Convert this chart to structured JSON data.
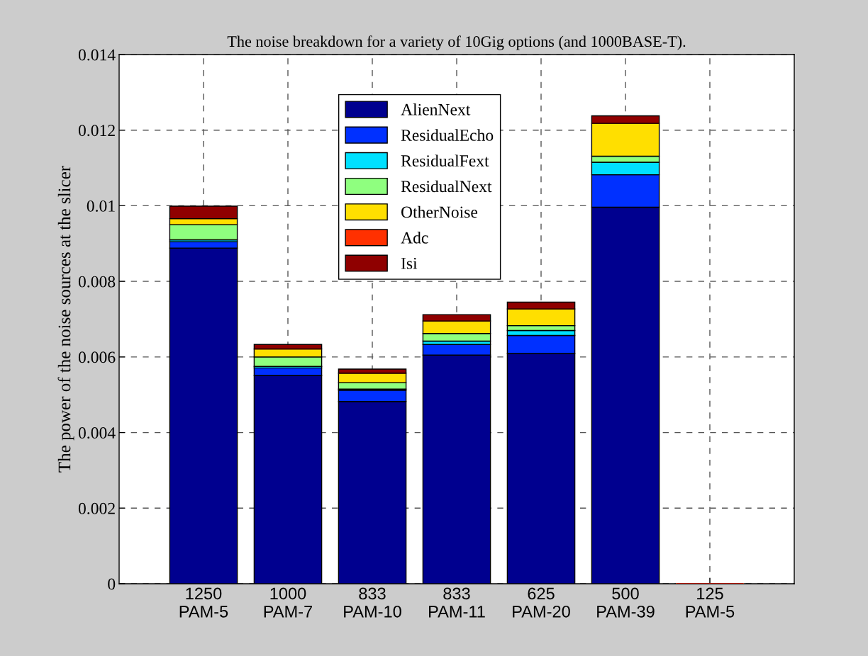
{
  "chart_data": {
    "type": "bar",
    "stacked": true,
    "title": "The noise breakdown for a variety of 10Gig options (and 1000BASE-T).",
    "ylabel": "The power of the noise sources at the slicer",
    "categories": [
      "1250\nPAM-5",
      "1000\nPAM-7",
      "833\nPAM-10",
      "833\nPAM-11",
      "625\nPAM-20",
      "500\nPAM-39",
      "125\nPAM-5"
    ],
    "series": [
      {
        "name": "AlienNext",
        "color": "#00008f",
        "values": [
          0.00888,
          0.00551,
          0.00482,
          0.00605,
          0.00609,
          0.00996,
          0
        ]
      },
      {
        "name": "ResidualEcho",
        "color": "#0030ff",
        "values": [
          0.00017,
          0.0002,
          0.0003,
          0.00028,
          0.00048,
          0.00086,
          0
        ]
      },
      {
        "name": "ResidualFext",
        "color": "#00e0ff",
        "values": [
          5e-05,
          4e-05,
          3e-05,
          9e-05,
          0.00013,
          0.00033,
          0
        ]
      },
      {
        "name": "ResidualNext",
        "color": "#8fff7f",
        "values": [
          0.0004,
          0.00025,
          0.00017,
          0.0002,
          0.00013,
          0.00016,
          0
        ]
      },
      {
        "name": "OtherNoise",
        "color": "#ffdf00",
        "values": [
          0.00016,
          0.00021,
          0.00025,
          0.00033,
          0.00044,
          0.00087,
          0
        ]
      },
      {
        "name": "Adc",
        "color": "#ff3000",
        "values": [
          0,
          0,
          0,
          0,
          0,
          0,
          0
        ]
      },
      {
        "name": "Isi",
        "color": "#8f0000",
        "values": [
          0.00033,
          0.00012,
          0.00011,
          0.00017,
          0.00018,
          0.0002,
          0
        ]
      }
    ],
    "ylim": [
      0,
      0.014
    ],
    "yticks": [
      0,
      0.002,
      0.004,
      0.006,
      0.008,
      0.01,
      0.012,
      0.014
    ],
    "grid": true,
    "legend": "top"
  }
}
